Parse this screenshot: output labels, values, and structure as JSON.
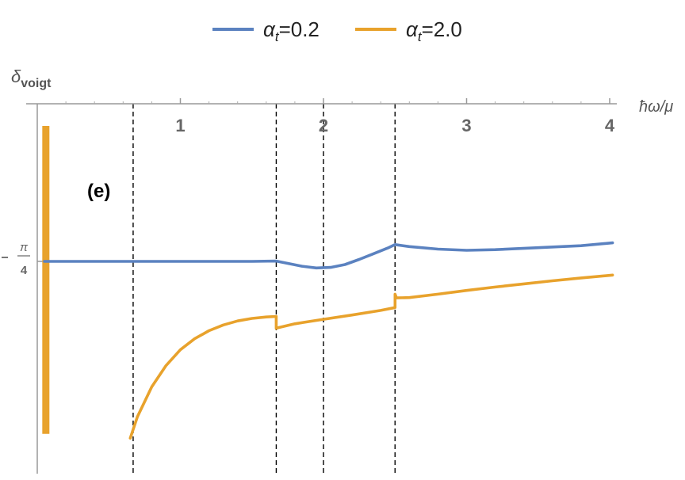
{
  "chart_data": {
    "type": "line",
    "panel_label": "(e)",
    "xlabel": "ħω/μ",
    "ylabel": "δvoigt",
    "ylabel_main": "δ",
    "ylabel_sub": "voigt",
    "xlim": [
      0,
      4
    ],
    "ylim": [
      -1.45,
      -0.25
    ],
    "x_ticks": [
      1,
      2,
      3,
      4
    ],
    "x_tick_labels": [
      "1",
      "2",
      "3",
      "4"
    ],
    "y_tick_label_num": "π",
    "y_tick_label_den": "4",
    "y_tick_value": -0.785,
    "vertical_guides": [
      0.67,
      1.67,
      2.0,
      2.5
    ],
    "grid": false,
    "legend_position": "top-center",
    "series": [
      {
        "name": "αt=0.2",
        "name_symbol": "α",
        "name_sub": "t",
        "name_value": "=0.2",
        "color": "#5b82c0",
        "x": [
          0.05,
          0.5,
          1.0,
          1.5,
          1.67,
          1.75,
          1.85,
          1.95,
          2.05,
          2.15,
          2.25,
          2.35,
          2.45,
          2.5,
          2.6,
          2.8,
          3.0,
          3.2,
          3.5,
          3.8,
          4.02
        ],
        "y": [
          -0.785,
          -0.785,
          -0.785,
          -0.785,
          -0.784,
          -0.792,
          -0.802,
          -0.808,
          -0.806,
          -0.796,
          -0.778,
          -0.758,
          -0.738,
          -0.726,
          -0.733,
          -0.742,
          -0.746,
          -0.744,
          -0.737,
          -0.73,
          -0.72
        ]
      },
      {
        "name": "αt=2.0",
        "name_symbol": "α",
        "name_sub": "t",
        "name_value": "=2.0",
        "color": "#e8a22c",
        "x": [
          0.65,
          0.7,
          0.8,
          0.9,
          1.0,
          1.1,
          1.2,
          1.3,
          1.4,
          1.5,
          1.6,
          1.67,
          1.67,
          1.68,
          1.8,
          2.0,
          2.2,
          2.4,
          2.5,
          2.5,
          2.51,
          2.6,
          2.8,
          3.0,
          3.2,
          3.4,
          3.6,
          3.8,
          4.02
        ],
        "y": [
          -1.405,
          -1.33,
          -1.225,
          -1.15,
          -1.095,
          -1.056,
          -1.028,
          -1.008,
          -0.994,
          -0.985,
          -0.98,
          -0.978,
          -1.02,
          -1.018,
          -1.004,
          -0.988,
          -0.973,
          -0.957,
          -0.947,
          -0.9,
          -0.913,
          -0.912,
          -0.9,
          -0.887,
          -0.875,
          -0.864,
          -0.853,
          -0.843,
          -0.833
        ]
      }
    ],
    "annotations": [
      {
        "type": "vertical-bar",
        "x": 0.06,
        "y_from": -1.39,
        "y_to": -0.31,
        "color": "#e8a22c"
      }
    ]
  }
}
